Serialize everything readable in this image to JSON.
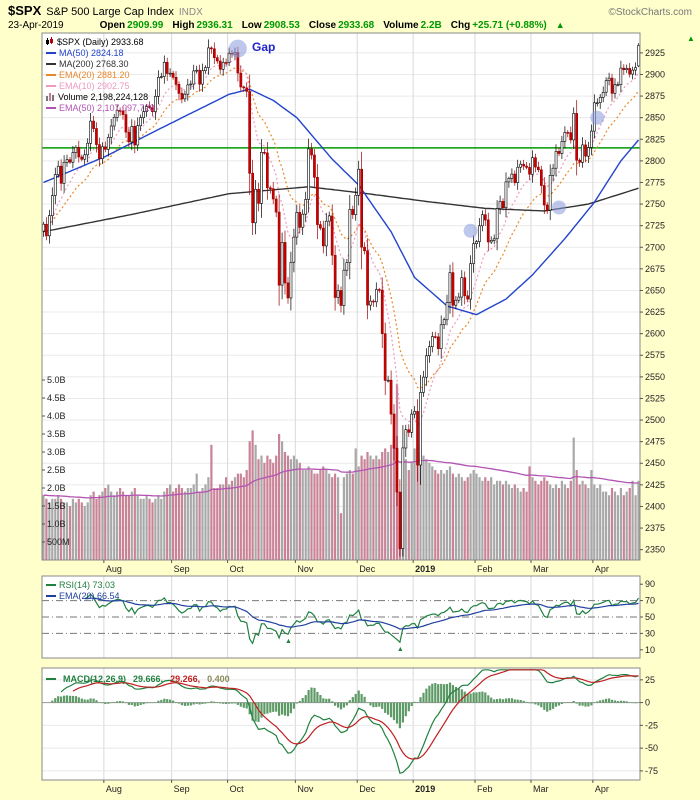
{
  "header": {
    "symbol": "$SPX",
    "name": "S&P 500 Large Cap Index",
    "exchange": "INDX",
    "brand": "©StockCharts.com",
    "date": "23-Apr-2019",
    "quote": [
      {
        "label": "Open",
        "value": "2909.99"
      },
      {
        "label": "High",
        "value": "2936.31"
      },
      {
        "label": "Low",
        "value": "2908.53"
      },
      {
        "label": "Close",
        "value": "2933.68"
      },
      {
        "label": "Volume",
        "value": "2.2B"
      },
      {
        "label": "Chg",
        "value": "+25.71 (+0.88%)"
      }
    ],
    "up_arrow": "▲"
  },
  "colors": {
    "background": "#FFFFCC",
    "panel_bg": "#FFFFFF",
    "border": "#888888",
    "grid": "#EAEAEA",
    "month_grid": "#D9D9D9",
    "up_candle": "#FFFFFF",
    "up_stroke": "#000000",
    "down_candle": "#CC0000",
    "down_stroke": "#990000",
    "vol_up": "#A8A8A8",
    "vol_down": "#C98296",
    "ma50": "#2244CC",
    "ma200": "#333333",
    "ema20": "#E8882A",
    "ema10": "#EE99C2",
    "vol_ema": "#B353B3",
    "rsi": "#208040",
    "rsi_ema": "#2040A0",
    "macd": "#208040",
    "macd_signal": "#C02020",
    "macd_hist": "#5E9A66",
    "value_green": "#009900",
    "axis_text": "#222222"
  },
  "main_legend": [
    {
      "text": "$SPX (Daily) 2933.68",
      "color": "#000000"
    },
    {
      "text": "MA(50) 2824.18",
      "color": "#2244CC"
    },
    {
      "text": "MA(200) 2768.30",
      "color": "#333333"
    },
    {
      "text": "EMA(20) 2881.20",
      "color": "#E8882A"
    },
    {
      "text": "EMA(10) 2902.75",
      "color": "#EE99C2"
    },
    {
      "text": "Volume 2,198,224,128",
      "color": "#000000"
    },
    {
      "text": "EMA(50) 2,107,097,728",
      "color": "#B353B3"
    }
  ],
  "rsi_legend": [
    {
      "text": "RSI(14) 73.03",
      "color": "#208040"
    },
    {
      "text": "EMA(20) 66.54",
      "color": "#2040A0"
    }
  ],
  "macd_legend": {
    "label": "MACD(12,26,9)",
    "v1": "29.666,",
    "v2": "29.266,",
    "v3": "0.400",
    "label_color": "#208040",
    "v1_color": "#208040",
    "v2_color": "#C02020",
    "v3_color": "#8A8A5A"
  },
  "axes": {
    "price_axis": {
      "min": 2350,
      "max": 2925,
      "step": 25
    },
    "volume_ticks": [
      {
        "label": "5.0B",
        "v": 5.0
      },
      {
        "label": "4.5B",
        "v": 4.5
      },
      {
        "label": "4.0B",
        "v": 4.0
      },
      {
        "label": "3.5B",
        "v": 3.5
      },
      {
        "label": "3.0B",
        "v": 3.0
      },
      {
        "label": "2.5B",
        "v": 2.5
      },
      {
        "label": "2.0B",
        "v": 2.0
      },
      {
        "label": "1.5B",
        "v": 1.5
      },
      {
        "label": "1.0B",
        "v": 1.0
      },
      {
        "label": "500M",
        "v": 0.5
      }
    ],
    "months": [
      {
        "label": "Aug",
        "i": 21,
        "bold": 0
      },
      {
        "label": "Sep",
        "i": 44,
        "bold": 0
      },
      {
        "label": "Oct",
        "i": 63,
        "bold": 0
      },
      {
        "label": "Nov",
        "i": 86,
        "bold": 0
      },
      {
        "label": "Dec",
        "i": 107,
        "bold": 0
      },
      {
        "label": "2019",
        "i": 126,
        "bold": 1
      },
      {
        "label": "Feb",
        "i": 147,
        "bold": 0
      },
      {
        "label": "Mar",
        "i": 166,
        "bold": 0
      },
      {
        "label": "Apr",
        "i": 187,
        "bold": 0
      }
    ],
    "rsi_ticks": [
      90,
      70,
      50,
      30,
      10
    ],
    "macd_ticks": [
      25,
      0,
      -25,
      -50,
      -75
    ]
  },
  "annotations": {
    "gap_label": "Gap",
    "gap_color": "#2222CC",
    "support_line_price": 2815,
    "support_line_color": "#009900",
    "circle_color": "#8899DD",
    "circles": [
      {
        "i": 66,
        "price": 2930,
        "r": 9
      },
      {
        "i": 145,
        "price": 2719,
        "r": 7
      },
      {
        "i": 175,
        "price": 2746,
        "r": 7
      },
      {
        "i": 188,
        "price": 2850,
        "r": 7
      }
    ],
    "rsi_markers": [
      {
        "i": 83
      },
      {
        "i": 121
      }
    ],
    "scroll_arrow": "▲"
  },
  "chart_data": {
    "type": "candlestick",
    "symbol": "$SPX",
    "timeframe": "Daily",
    "date_range": "Jul-2018 to 23-Apr-2019",
    "last_ohlc": {
      "open": 2909.99,
      "high": 2936.31,
      "low": 2908.53,
      "close": 2933.68
    },
    "indicator_values": {
      "ma50": 2824.18,
      "ma200": 2768.3,
      "ema20": 2881.2,
      "ema10": 2902.75,
      "volume": "2,198,224,128",
      "volume_ema50": "2,107,097,728",
      "rsi14": 73.03,
      "rsi_ema20": 66.54,
      "macd": 29.666,
      "macd_signal": 29.266,
      "macd_hist": 0.4
    },
    "closes": [
      2726.71,
      2713.22,
      2736.61,
      2759.82,
      2784.17,
      2793.84,
      2774.02,
      2798.29,
      2801.31,
      2798.43,
      2809.55,
      2815.62,
      2804.49,
      2801.83,
      2806.98,
      2820.4,
      2846.07,
      2837.44,
      2818.82,
      2802.6,
      2816.29,
      2813.36,
      2827.22,
      2840.35,
      2850.4,
      2858.45,
      2857.7,
      2853.58,
      2833.28,
      2821.93,
      2839.96,
      2818.37,
      2840.69,
      2850.13,
      2857.05,
      2862.96,
      2861.82,
      2856.98,
      2874.69,
      2896.74,
      2897.52,
      2914.04,
      2901.13,
      2901.52,
      2896.72,
      2888.6,
      2878.05,
      2871.68,
      2877.13,
      2887.89,
      2888.92,
      2904.18,
      2904.98,
      2888.8,
      2904.31,
      2907.95,
      2930.75,
      2929.67,
      2919.37,
      2915.56,
      2905.97,
      2914.0,
      2913.98,
      2924.59,
      2923.43,
      2925.51,
      2901.61,
      2885.57,
      2884.43,
      2880.34,
      2785.68,
      2728.37,
      2767.13,
      2750.79,
      2809.92,
      2809.21,
      2768.78,
      2767.78,
      2755.88,
      2740.69,
      2656.1,
      2705.57,
      2658.69,
      2641.25,
      2682.63,
      2711.74,
      2740.37,
      2723.06,
      2738.31,
      2755.45,
      2813.89,
      2806.83,
      2781.01,
      2726.22,
      2722.18,
      2701.58,
      2730.2,
      2736.27,
      2690.73,
      2641.89,
      2649.93,
      2632.56,
      2673.45,
      2682.17,
      2743.79,
      2737.76,
      2760.17,
      2790.37,
      2700.06,
      2695.95,
      2633.08,
      2637.72,
      2636.78,
      2651.07,
      2650.54,
      2599.95,
      2545.94,
      2546.16,
      2506.96,
      2467.42,
      2416.62,
      2351.1,
      2467.7,
      2488.83,
      2485.74,
      2506.85,
      2510.03,
      2447.89,
      2531.94,
      2549.69,
      2574.41,
      2584.96,
      2596.64,
      2596.26,
      2582.61,
      2610.3,
      2616.1,
      2635.96,
      2670.71,
      2632.9,
      2638.7,
      2642.33,
      2664.76,
      2643.85,
      2640.0,
      2681.05,
      2704.1,
      2706.53,
      2724.87,
      2737.7,
      2731.61,
      2706.05,
      2707.88,
      2709.8,
      2744.73,
      2753.03,
      2745.73,
      2775.6,
      2779.76,
      2784.7,
      2774.88,
      2792.67,
      2796.11,
      2793.9,
      2792.38,
      2784.49,
      2803.69,
      2792.81,
      2789.65,
      2771.45,
      2748.93,
      2743.07,
      2783.3,
      2791.52,
      2810.92,
      2808.48,
      2822.48,
      2832.94,
      2832.57,
      2824.23,
      2854.88,
      2800.71,
      2798.36,
      2818.46,
      2805.37,
      2815.44,
      2834.4,
      2867.19,
      2867.24,
      2873.4,
      2879.39,
      2892.74,
      2895.77,
      2878.2,
      2888.21,
      2888.32,
      2907.41,
      2905.58,
      2907.06,
      2900.45,
      2905.03,
      2907.97,
      2933.68
    ],
    "volumes_b": [
      1.8,
      1.7,
      1.6,
      1.7,
      1.7,
      1.8,
      1.7,
      1.6,
      1.6,
      1.5,
      1.7,
      1.6,
      1.7,
      1.6,
      1.5,
      1.6,
      1.8,
      1.9,
      1.7,
      1.8,
      1.9,
      2.0,
      2.1,
      1.9,
      1.8,
      1.9,
      2.0,
      1.9,
      1.8,
      1.8,
      1.9,
      2.0,
      1.8,
      1.7,
      1.7,
      1.8,
      1.7,
      1.6,
      1.7,
      1.8,
      1.7,
      1.9,
      2.0,
      2.1,
      1.9,
      2.0,
      2.1,
      2.0,
      1.9,
      2.0,
      2.0,
      2.1,
      2.4,
      1.9,
      2.0,
      2.1,
      2.3,
      3.2,
      2.0,
      2.0,
      2.1,
      2.1,
      2.3,
      2.1,
      2.2,
      2.3,
      2.4,
      2.4,
      2.3,
      2.5,
      3.3,
      3.6,
      3.2,
      2.8,
      2.9,
      2.7,
      2.9,
      2.8,
      2.7,
      2.9,
      3.5,
      3.3,
      3.0,
      2.9,
      2.8,
      2.9,
      2.8,
      2.7,
      2.5,
      2.5,
      2.6,
      2.5,
      2.4,
      2.4,
      2.5,
      2.6,
      2.5,
      2.4,
      2.3,
      2.4,
      2.3,
      1.3,
      2.3,
      2.4,
      2.5,
      2.4,
      3.1,
      2.6,
      2.9,
      2.8,
      3.0,
      2.9,
      2.8,
      2.9,
      2.8,
      3.0,
      3.1,
      3.0,
      3.2,
      3.4,
      4.9,
      1.6,
      2.9,
      2.8,
      2.5,
      2.7,
      3.1,
      3.2,
      3.0,
      2.9,
      2.8,
      2.7,
      2.6,
      2.5,
      2.4,
      2.5,
      2.4,
      2.5,
      2.6,
      2.4,
      2.3,
      2.4,
      2.3,
      2.2,
      2.3,
      2.4,
      2.5,
      2.4,
      2.3,
      2.2,
      2.3,
      2.2,
      2.3,
      2.1,
      2.2,
      2.2,
      2.1,
      2.2,
      2.1,
      2.0,
      2.1,
      2.0,
      1.9,
      2.0,
      1.9,
      2.6,
      2.3,
      2.2,
      2.1,
      2.2,
      2.3,
      2.2,
      2.1,
      2.0,
      2.1,
      2.0,
      2.2,
      2.1,
      2.0,
      2.2,
      3.4,
      2.5,
      2.1,
      2.2,
      2.1,
      2.0,
      2.5,
      2.1,
      2.0,
      2.1,
      1.9,
      1.9,
      1.8,
      2.0,
      1.9,
      1.8,
      2.0,
      1.8,
      1.9,
      2.0,
      2.2,
      1.8,
      2.2
    ],
    "ma50_anchors": [
      [
        0,
        2775
      ],
      [
        21,
        2805
      ],
      [
        40,
        2838
      ],
      [
        63,
        2877
      ],
      [
        70,
        2883
      ],
      [
        78,
        2870
      ],
      [
        86,
        2850
      ],
      [
        98,
        2802
      ],
      [
        107,
        2772
      ],
      [
        118,
        2718
      ],
      [
        126,
        2665
      ],
      [
        137,
        2632
      ],
      [
        147,
        2622
      ],
      [
        157,
        2640
      ],
      [
        166,
        2668
      ],
      [
        177,
        2710
      ],
      [
        187,
        2752
      ],
      [
        196,
        2800
      ],
      [
        202,
        2824.18
      ]
    ],
    "ma200_anchors": [
      [
        0,
        2718
      ],
      [
        30,
        2738
      ],
      [
        63,
        2762
      ],
      [
        90,
        2770
      ],
      [
        110,
        2762
      ],
      [
        130,
        2753
      ],
      [
        150,
        2745
      ],
      [
        170,
        2742
      ],
      [
        185,
        2750
      ],
      [
        202,
        2768.3
      ]
    ]
  }
}
